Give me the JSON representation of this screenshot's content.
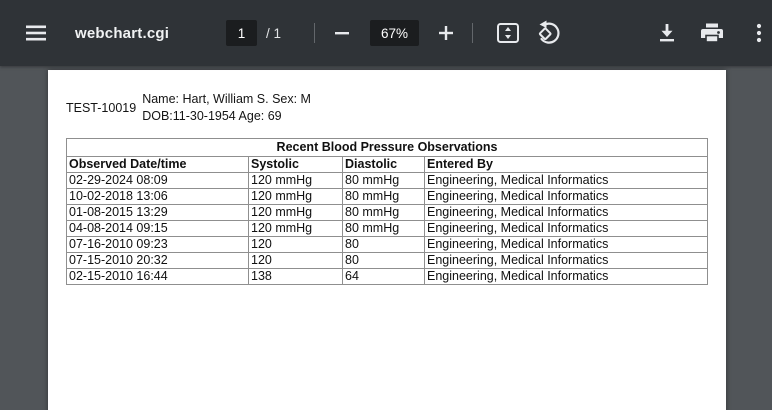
{
  "toolbar": {
    "title": "webchart.cgi",
    "page_input_value": "1",
    "page_total_label": "/ 1",
    "zoom_value": "67%",
    "icons": {
      "menu": "menu-icon",
      "zoom_out": "minus-icon",
      "zoom_in": "plus-icon",
      "fit_page": "fit-to-page-icon",
      "rotate": "rotate-counterclockwise-icon",
      "download": "download-icon",
      "print": "printer-icon",
      "more": "three-dot-menu-icon"
    },
    "colors": {
      "toolbar_bg": "#2f3337",
      "field_bg": "#1b1d1f",
      "icon_color": "#e8eaed",
      "viewer_bg": "#515559"
    }
  },
  "document": {
    "patient_id": "TEST-10019",
    "patient_line1": "Name: Hart, William S. Sex: M",
    "patient_line2": "DOB:11-30-1954 Age: 69",
    "table": {
      "title": "Recent Blood Pressure Observations",
      "headers": [
        "Observed Date/time",
        "Systolic",
        "Diastolic",
        "Entered By"
      ],
      "rows": [
        [
          "02-29-2024 08:09",
          "120 mmHg",
          "80 mmHg",
          "Engineering, Medical Informatics"
        ],
        [
          "10-02-2018 13:06",
          "120 mmHg",
          "80 mmHg",
          "Engineering, Medical Informatics"
        ],
        [
          "01-08-2015 13:29",
          "120 mmHg",
          "80 mmHg",
          "Engineering, Medical Informatics"
        ],
        [
          "04-08-2014 09:15",
          "120 mmHg",
          "80 mmHg",
          "Engineering, Medical Informatics"
        ],
        [
          "07-16-2010 09:23",
          "120",
          "80",
          "Engineering, Medical Informatics"
        ],
        [
          "07-15-2010 20:32",
          "120",
          "80",
          "Engineering, Medical Informatics"
        ],
        [
          "02-15-2010 16:44",
          "138",
          "64",
          "Engineering, Medical Informatics"
        ]
      ]
    }
  }
}
